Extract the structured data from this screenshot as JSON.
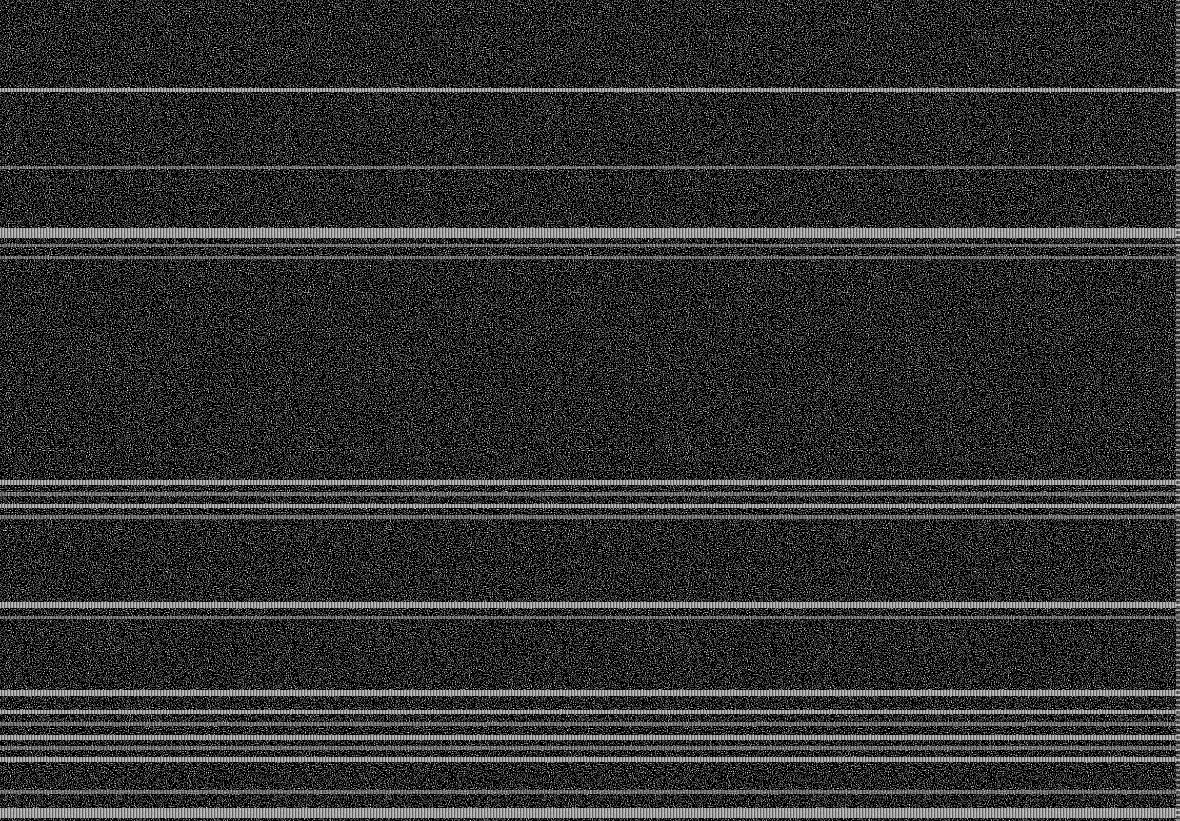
{
  "image": {
    "description_kind": "noisy scanned texture",
    "background_color": "#000000",
    "speckle_color": "#e6e6e6",
    "stripe_color": "#cfcfcf"
  }
}
